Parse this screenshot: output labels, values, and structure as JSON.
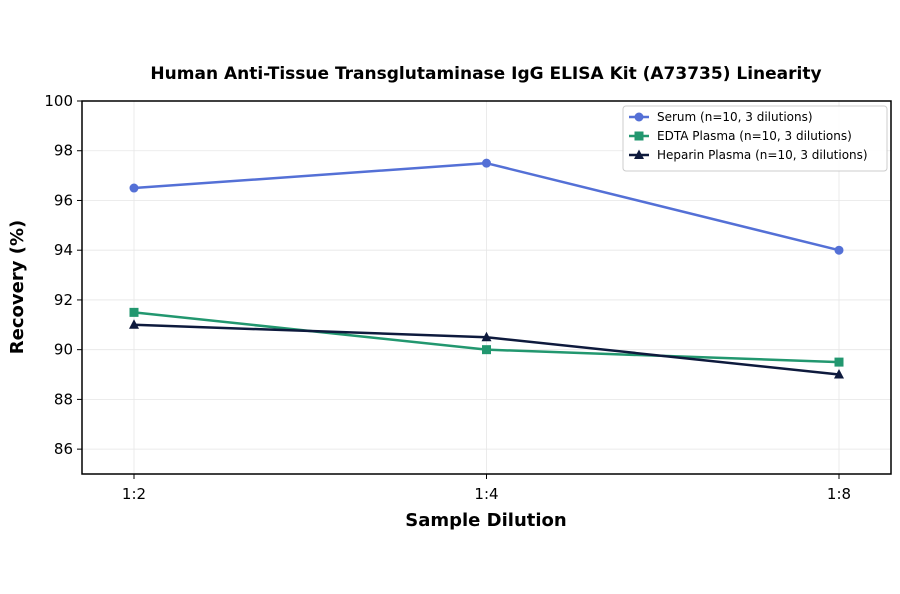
{
  "chart_data": {
    "type": "line",
    "title": "Human Anti-Tissue Transglutaminase IgG ELISA Kit (A73735) Linearity",
    "xlabel": "Sample Dilution",
    "ylabel": "Recovery (%)",
    "categories": [
      "1:2",
      "1:4",
      "1:8"
    ],
    "ylim": [
      85,
      100
    ],
    "yticks": [
      86,
      88,
      90,
      92,
      94,
      96,
      98,
      100
    ],
    "grid": true,
    "legend_position": "top-right",
    "series": [
      {
        "name": "Serum (n=10, 3 dilutions)",
        "values": [
          96.5,
          97.5,
          94.0
        ],
        "color": "#5470d6",
        "marker": "circle"
      },
      {
        "name": "EDTA Plasma (n=10, 3 dilutions)",
        "values": [
          91.5,
          90.0,
          89.5
        ],
        "color": "#22976f",
        "marker": "square"
      },
      {
        "name": "Heparin Plasma (n=10, 3 dilutions)",
        "values": [
          91.0,
          90.5,
          89.0
        ],
        "color": "#0e1a3d",
        "marker": "triangle"
      }
    ]
  }
}
